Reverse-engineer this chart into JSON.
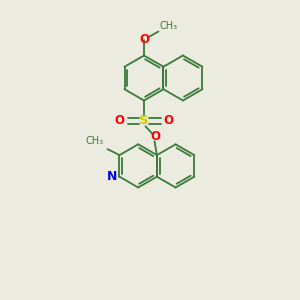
{
  "background_color": "#ebebdf",
  "bond_color": "#3a7a3a",
  "atom_colors": {
    "O": "#ff0000",
    "S": "#cccc00",
    "N": "#0000ee",
    "C": "#3a7a3a"
  },
  "figsize": [
    3.0,
    3.0
  ],
  "dpi": 100
}
